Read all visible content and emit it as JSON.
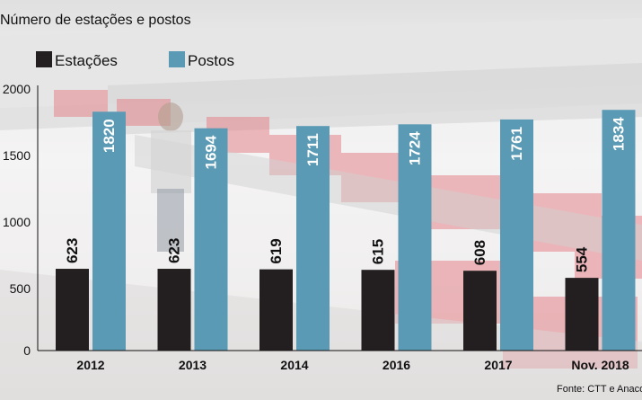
{
  "chart_data": {
    "type": "bar",
    "title": "Número de estações e postos",
    "categories": [
      "2012",
      "2013",
      "2014",
      "2016",
      "2017",
      "Nov. 2018"
    ],
    "series": [
      {
        "name": "Estações",
        "color": "#231f20",
        "values": [
          623,
          623,
          619,
          615,
          608,
          554
        ]
      },
      {
        "name": "Postos",
        "color": "#5b9ab4",
        "values": [
          1820,
          1694,
          1711,
          1724,
          1761,
          1834
        ]
      }
    ],
    "yticks": [
      "0",
      "500",
      "1000",
      "1500",
      "2000"
    ],
    "ylim": [
      0,
      2000
    ],
    "grid": false,
    "legend": "top-left",
    "source": "Fonte: CTT e Anacom"
  }
}
